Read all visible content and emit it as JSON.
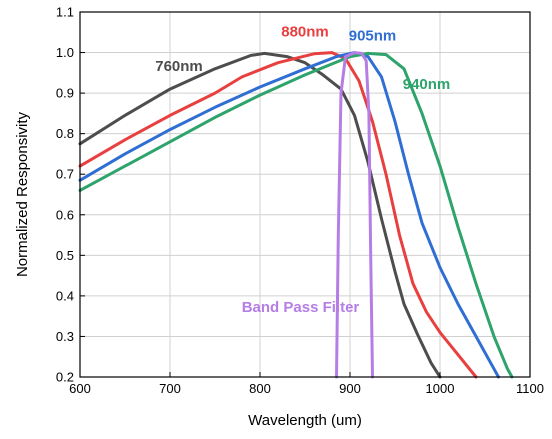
{
  "chart_data": {
    "type": "line",
    "title": "",
    "xlabel": "Wavelength (um)",
    "ylabel": "Normalized Responsivity",
    "xlim": [
      600,
      1100
    ],
    "ylim": [
      0.2,
      1.1
    ],
    "xticks": [
      "600",
      "700",
      "800",
      "900",
      "1000",
      "1100"
    ],
    "yticks": [
      "0.2",
      "0.3",
      "0.4",
      "0.5",
      "0.6",
      "0.7",
      "0.8",
      "0.9",
      "1.0",
      "1.1"
    ],
    "grid": true,
    "legend": "inline labels",
    "series": [
      {
        "name": "760nm",
        "color": "#4d4d4d",
        "points": [
          [
            600,
            0.775
          ],
          [
            650,
            0.845
          ],
          [
            700,
            0.91
          ],
          [
            750,
            0.96
          ],
          [
            790,
            0.993
          ],
          [
            805,
            0.998
          ],
          [
            830,
            0.99
          ],
          [
            850,
            0.975
          ],
          [
            870,
            0.945
          ],
          [
            890,
            0.91
          ],
          [
            905,
            0.845
          ],
          [
            920,
            0.73
          ],
          [
            935,
            0.59
          ],
          [
            950,
            0.46
          ],
          [
            960,
            0.38
          ],
          [
            975,
            0.305
          ],
          [
            990,
            0.235
          ],
          [
            1000,
            0.2
          ]
        ]
      },
      {
        "name": "880nm",
        "color": "#e8403f",
        "points": [
          [
            600,
            0.72
          ],
          [
            650,
            0.785
          ],
          [
            700,
            0.845
          ],
          [
            750,
            0.9
          ],
          [
            780,
            0.94
          ],
          [
            820,
            0.975
          ],
          [
            860,
            0.997
          ],
          [
            880,
            1.0
          ],
          [
            895,
            0.985
          ],
          [
            910,
            0.93
          ],
          [
            925,
            0.83
          ],
          [
            940,
            0.7
          ],
          [
            955,
            0.55
          ],
          [
            970,
            0.43
          ],
          [
            985,
            0.36
          ],
          [
            1000,
            0.31
          ],
          [
            1020,
            0.255
          ],
          [
            1040,
            0.2
          ]
        ]
      },
      {
        "name": "905nm",
        "color": "#2f6fd3",
        "points": [
          [
            600,
            0.685
          ],
          [
            650,
            0.75
          ],
          [
            700,
            0.81
          ],
          [
            750,
            0.865
          ],
          [
            800,
            0.915
          ],
          [
            850,
            0.96
          ],
          [
            885,
            0.99
          ],
          [
            905,
            1.0
          ],
          [
            920,
            0.99
          ],
          [
            935,
            0.94
          ],
          [
            950,
            0.83
          ],
          [
            965,
            0.7
          ],
          [
            980,
            0.58
          ],
          [
            1000,
            0.47
          ],
          [
            1020,
            0.38
          ],
          [
            1040,
            0.3
          ],
          [
            1055,
            0.24
          ],
          [
            1065,
            0.2
          ]
        ]
      },
      {
        "name": "940nm",
        "color": "#2ea36b",
        "points": [
          [
            600,
            0.66
          ],
          [
            650,
            0.72
          ],
          [
            700,
            0.78
          ],
          [
            750,
            0.84
          ],
          [
            800,
            0.895
          ],
          [
            850,
            0.945
          ],
          [
            900,
            0.99
          ],
          [
            920,
            0.998
          ],
          [
            940,
            0.995
          ],
          [
            960,
            0.96
          ],
          [
            980,
            0.85
          ],
          [
            1000,
            0.72
          ],
          [
            1020,
            0.57
          ],
          [
            1040,
            0.43
          ],
          [
            1060,
            0.3
          ],
          [
            1075,
            0.22
          ],
          [
            1080,
            0.2
          ]
        ]
      },
      {
        "name": "Band Pass Filter",
        "color": "#b57ee6",
        "points": [
          [
            885,
            0.2
          ],
          [
            887,
            0.55
          ],
          [
            890,
            0.9
          ],
          [
            895,
            0.99
          ],
          [
            905,
            1.0
          ],
          [
            913,
            0.998
          ],
          [
            918,
            0.98
          ],
          [
            921,
            0.85
          ],
          [
            923,
            0.5
          ],
          [
            925,
            0.2
          ]
        ]
      }
    ],
    "labels": [
      {
        "text": "760nm",
        "color": "#4d4d4d",
        "x": 710,
        "y": 0.955
      },
      {
        "text": "880nm",
        "color": "#e8403f",
        "x": 850,
        "y": 1.04
      },
      {
        "text": "905nm",
        "color": "#2f6fd3",
        "x": 925,
        "y": 1.03
      },
      {
        "text": "940nm",
        "color": "#2ea36b",
        "x": 985,
        "y": 0.91
      },
      {
        "text": "Band Pass Filter",
        "color": "#b57ee6",
        "x": 845,
        "y": 0.36
      }
    ]
  }
}
